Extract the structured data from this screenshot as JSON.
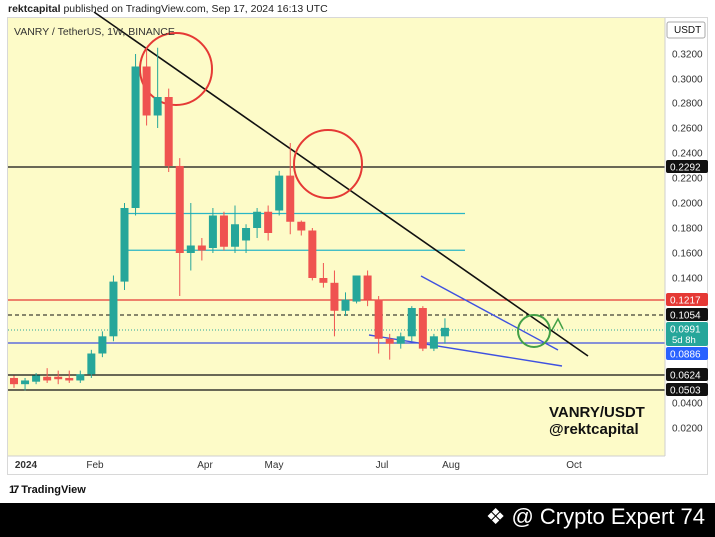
{
  "header": {
    "publisher": "rektcapital",
    "text": "published on TradingView.com, Sep 17, 2024 16:13 UTC"
  },
  "chart_title": "VANRY / TetherUS, 1W, BINANCE",
  "annotation": {
    "line1": "VANRY/USDT",
    "line2": "@rektcapital"
  },
  "tradingview_logo": "TradingView",
  "watermark": "@ Crypto Expert 74",
  "colors": {
    "background": "#fdfbc8",
    "bullish": "#26a69a",
    "bearish": "#ef5350",
    "downtrend_line": "#000000",
    "cyan_levels": "#29b6c6",
    "red_level": "#e53935",
    "blue_wedge": "#3f51e0",
    "circle_red": "#e53935",
    "circle_green": "#43a047"
  },
  "chart_data": {
    "type": "candlestick",
    "timeframe": "1W",
    "price_scale_unit": "USDT",
    "x_tick_labels": [
      "2024",
      "Feb",
      "Apr",
      "May",
      "Jul",
      "Aug",
      "Oct"
    ],
    "y_tick_labels": [
      "0.3200",
      "0.3000",
      "0.2800",
      "0.2600",
      "0.2400",
      "0.2200",
      "0.2000",
      "0.1800",
      "0.1600",
      "0.1400",
      "0.0400",
      "0.0200"
    ],
    "price_labels": [
      {
        "value": "0.2292",
        "style": "black"
      },
      {
        "value": "0.1217",
        "style": "red"
      },
      {
        "value": "0.1054",
        "style": "black"
      },
      {
        "value": "0.0991",
        "style": "green",
        "sub": "5d 8h"
      },
      {
        "value": "0.0886",
        "style": "blue"
      },
      {
        "value": "0.0624",
        "style": "black"
      },
      {
        "value": "0.0503",
        "style": "black"
      }
    ],
    "horizontal_levels": [
      {
        "price": 0.2292,
        "color": "black",
        "style": "solid"
      },
      {
        "price": 0.1916,
        "color": "cyan",
        "style": "solid",
        "partial": true
      },
      {
        "price": 0.1622,
        "color": "cyan",
        "style": "solid",
        "partial": true
      },
      {
        "price": 0.1217,
        "color": "red",
        "style": "solid"
      },
      {
        "price": 0.1054,
        "color": "black",
        "style": "dashed"
      },
      {
        "price": 0.0991,
        "color": "green",
        "style": "dotted"
      },
      {
        "price": 0.0886,
        "color": "blue",
        "style": "solid"
      },
      {
        "price": 0.0624,
        "color": "black",
        "style": "solid"
      },
      {
        "price": 0.0503,
        "color": "black",
        "style": "solid"
      }
    ],
    "candles": [
      {
        "o": 0.06,
        "h": 0.062,
        "l": 0.052,
        "c": 0.055
      },
      {
        "o": 0.055,
        "h": 0.06,
        "l": 0.05,
        "c": 0.058
      },
      {
        "o": 0.057,
        "h": 0.064,
        "l": 0.055,
        "c": 0.062
      },
      {
        "o": 0.061,
        "h": 0.068,
        "l": 0.056,
        "c": 0.058
      },
      {
        "o": 0.061,
        "h": 0.066,
        "l": 0.055,
        "c": 0.059
      },
      {
        "o": 0.06,
        "h": 0.066,
        "l": 0.056,
        "c": 0.058
      },
      {
        "o": 0.058,
        "h": 0.066,
        "l": 0.056,
        "c": 0.063
      },
      {
        "o": 0.063,
        "h": 0.083,
        "l": 0.06,
        "c": 0.08
      },
      {
        "o": 0.08,
        "h": 0.098,
        "l": 0.077,
        "c": 0.094
      },
      {
        "o": 0.094,
        "h": 0.142,
        "l": 0.09,
        "c": 0.137
      },
      {
        "o": 0.137,
        "h": 0.2,
        "l": 0.13,
        "c": 0.196
      },
      {
        "o": 0.196,
        "h": 0.32,
        "l": 0.19,
        "c": 0.31
      },
      {
        "o": 0.31,
        "h": 0.325,
        "l": 0.262,
        "c": 0.27
      },
      {
        "o": 0.27,
        "h": 0.325,
        "l": 0.26,
        "c": 0.285
      },
      {
        "o": 0.285,
        "h": 0.292,
        "l": 0.225,
        "c": 0.23
      },
      {
        "o": 0.23,
        "h": 0.236,
        "l": 0.125,
        "c": 0.16
      },
      {
        "o": 0.16,
        "h": 0.2,
        "l": 0.146,
        "c": 0.166
      },
      {
        "o": 0.166,
        "h": 0.172,
        "l": 0.154,
        "c": 0.162
      },
      {
        "o": 0.164,
        "h": 0.196,
        "l": 0.16,
        "c": 0.19
      },
      {
        "o": 0.19,
        "h": 0.193,
        "l": 0.162,
        "c": 0.165
      },
      {
        "o": 0.165,
        "h": 0.198,
        "l": 0.16,
        "c": 0.183
      },
      {
        "o": 0.17,
        "h": 0.183,
        "l": 0.16,
        "c": 0.18
      },
      {
        "o": 0.18,
        "h": 0.196,
        "l": 0.172,
        "c": 0.193
      },
      {
        "o": 0.193,
        "h": 0.198,
        "l": 0.17,
        "c": 0.176
      },
      {
        "o": 0.194,
        "h": 0.226,
        "l": 0.19,
        "c": 0.222
      },
      {
        "o": 0.222,
        "h": 0.248,
        "l": 0.175,
        "c": 0.185
      },
      {
        "o": 0.185,
        "h": 0.186,
        "l": 0.174,
        "c": 0.178
      },
      {
        "o": 0.178,
        "h": 0.18,
        "l": 0.138,
        "c": 0.14
      },
      {
        "o": 0.14,
        "h": 0.152,
        "l": 0.132,
        "c": 0.136
      },
      {
        "o": 0.136,
        "h": 0.146,
        "l": 0.094,
        "c": 0.11
      },
      {
        "o": 0.11,
        "h": 0.128,
        "l": 0.105,
        "c": 0.122
      },
      {
        "o": 0.12,
        "h": 0.142,
        "l": 0.118,
        "c": 0.142
      },
      {
        "o": 0.142,
        "h": 0.146,
        "l": 0.115,
        "c": 0.122
      },
      {
        "o": 0.122,
        "h": 0.125,
        "l": 0.08,
        "c": 0.092
      },
      {
        "o": 0.092,
        "h": 0.096,
        "l": 0.075,
        "c": 0.088
      },
      {
        "o": 0.088,
        "h": 0.097,
        "l": 0.084,
        "c": 0.094
      },
      {
        "o": 0.094,
        "h": 0.115,
        "l": 0.09,
        "c": 0.113
      },
      {
        "o": 0.113,
        "h": 0.115,
        "l": 0.082,
        "c": 0.084
      },
      {
        "o": 0.084,
        "h": 0.096,
        "l": 0.082,
        "c": 0.094
      },
      {
        "o": 0.094,
        "h": 0.104,
        "l": 0.088,
        "c": 0.1
      }
    ]
  }
}
